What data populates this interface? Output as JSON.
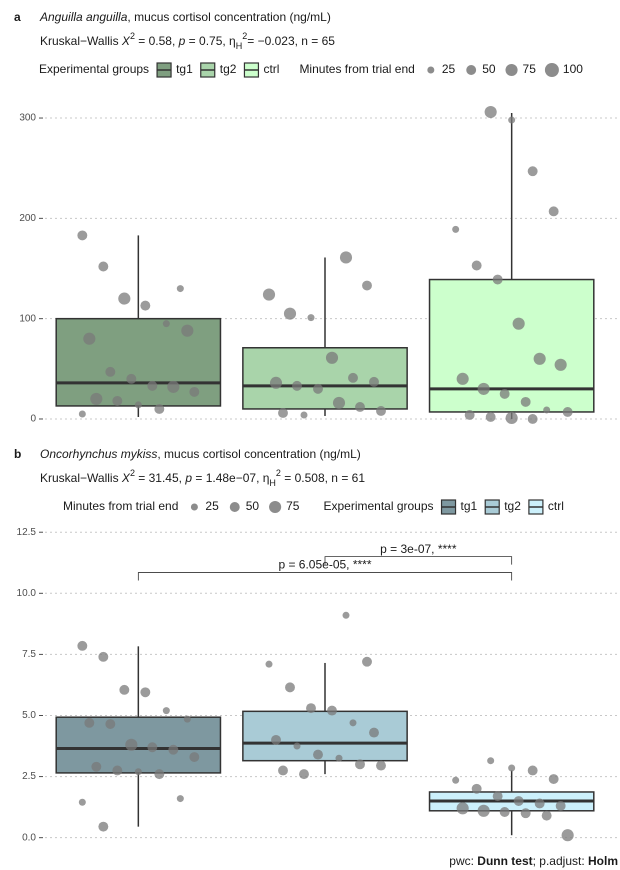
{
  "chart_data": [
    {
      "type": "box",
      "panel": "a",
      "title": [
        {
          "text": "Anguilla anguilla",
          "style": "italic"
        },
        {
          "text": ", mucus cortisol concentration (ng/mL)",
          "style": "normal"
        }
      ],
      "subtitle": [
        {
          "text": "Kruskal−Wallis ",
          "style": "normal"
        },
        {
          "text": "X",
          "style": "italic"
        },
        {
          "text": "2",
          "style": "sup"
        },
        {
          "text": " = 0.58, ",
          "style": "normal"
        },
        {
          "text": "p",
          "style": "italic"
        },
        {
          "text": " = 0.75, η",
          "style": "normal"
        },
        {
          "text": "H",
          "style": "sub"
        },
        {
          "text": "2",
          "style": "sup"
        },
        {
          "text": "= −0.023, n = 65",
          "style": "normal"
        }
      ],
      "group_legend_title": "Experimental groups",
      "size_legend_title": "Minutes from trial end",
      "legend_order": [
        "group",
        "size"
      ],
      "size_ticks": [
        25,
        50,
        75,
        100
      ],
      "ylim": [
        -6,
        310
      ],
      "yticks": [
        0,
        100,
        200,
        300
      ],
      "grid": true,
      "series": [
        {
          "name": "tg1",
          "color": "#7f9f80",
          "whisker_low": 2,
          "q1": 13,
          "median": 36,
          "q3": 100,
          "whisker_high": 183,
          "points": [
            183,
            152,
            120,
            113,
            95,
            88,
            80,
            47,
            40,
            33,
            32,
            27,
            20,
            18,
            14,
            10,
            130,
            5
          ],
          "sizes": [
            50,
            50,
            75,
            50,
            25,
            75,
            75,
            50,
            50,
            50,
            75,
            50,
            75,
            50,
            25,
            50,
            25,
            25
          ]
        },
        {
          "name": "tg2",
          "color": "#a9d4aa",
          "whisker_low": 3,
          "q1": 10,
          "median": 33,
          "q3": 71,
          "whisker_high": 161,
          "points": [
            161,
            133,
            124,
            105,
            101,
            61,
            41,
            37,
            36,
            33,
            30,
            16,
            12,
            8,
            6,
            4
          ],
          "sizes": [
            75,
            50,
            75,
            75,
            25,
            75,
            50,
            50,
            75,
            50,
            50,
            75,
            50,
            50,
            50,
            25
          ]
        },
        {
          "name": "ctrl",
          "color": "#ccffcc",
          "whisker_low": 0,
          "q1": 7,
          "median": 30,
          "q3": 139,
          "whisker_high": 305,
          "points": [
            306,
            298,
            247,
            207,
            189,
            153,
            139,
            95,
            60,
            54,
            40,
            30,
            25,
            17,
            9,
            7,
            4,
            2,
            1,
            0
          ],
          "sizes": [
            75,
            25,
            50,
            50,
            25,
            50,
            50,
            75,
            75,
            75,
            75,
            75,
            50,
            50,
            25,
            50,
            50,
            50,
            75,
            50
          ]
        }
      ]
    },
    {
      "type": "box",
      "panel": "b",
      "title": [
        {
          "text": "Oncorhynchus mykiss",
          "style": "italic"
        },
        {
          "text": ", mucus cortisol concentration (ng/mL)",
          "style": "normal"
        }
      ],
      "subtitle": [
        {
          "text": "Kruskal−Wallis ",
          "style": "normal"
        },
        {
          "text": "X",
          "style": "italic"
        },
        {
          "text": "2",
          "style": "sup"
        },
        {
          "text": " = 31.45, ",
          "style": "normal"
        },
        {
          "text": "p",
          "style": "italic"
        },
        {
          "text": " = 1.48e−07, η",
          "style": "normal"
        },
        {
          "text": "H",
          "style": "sub"
        },
        {
          "text": "2",
          "style": "sup"
        },
        {
          "text": " = 0.508, n = 61",
          "style": "normal"
        }
      ],
      "group_legend_title": "Experimental groups",
      "size_legend_title": "Minutes from trial end",
      "legend_order": [
        "size",
        "group"
      ],
      "size_ticks": [
        25,
        50,
        75
      ],
      "ylim": [
        -0.3,
        13
      ],
      "grid": true,
      "yticks": [
        {
          "value": 0,
          "label": "0.0"
        },
        {
          "value": 2.5,
          "label": "2.5"
        },
        {
          "value": 5,
          "label": "5.0"
        },
        {
          "value": 7.5,
          "label": "7.5"
        },
        {
          "value": 10,
          "label": "10.0"
        },
        {
          "value": 12.5,
          "label": "12.5"
        }
      ],
      "series": [
        {
          "name": "tg1",
          "color": "#7e98a0",
          "whisker_low": 0.45,
          "q1": 2.65,
          "median": 3.65,
          "q3": 4.93,
          "whisker_high": 7.83,
          "points": [
            7.85,
            7.4,
            6.05,
            5.95,
            5.2,
            4.85,
            4.7,
            4.65,
            3.8,
            3.7,
            3.6,
            3.3,
            2.9,
            2.75,
            2.7,
            2.6,
            1.6,
            1.45,
            0.45
          ],
          "sizes": [
            50,
            50,
            50,
            50,
            25,
            25,
            50,
            50,
            75,
            50,
            50,
            50,
            50,
            50,
            25,
            50,
            25,
            25,
            50
          ]
        },
        {
          "name": "tg2",
          "color": "#a9cbd6",
          "whisker_low": 2.6,
          "q1": 3.15,
          "median": 3.87,
          "q3": 5.17,
          "whisker_high": 7.15,
          "points": [
            9.1,
            7.2,
            7.1,
            6.15,
            5.3,
            5.2,
            4.7,
            4.3,
            4.0,
            3.75,
            3.4,
            3.25,
            3.0,
            2.95,
            2.75,
            2.6
          ],
          "sizes": [
            25,
            50,
            25,
            50,
            50,
            50,
            25,
            50,
            50,
            25,
            50,
            25,
            50,
            50,
            50,
            50
          ]
        },
        {
          "name": "ctrl",
          "color": "#ccf0fb",
          "whisker_low": 0.1,
          "q1": 1.1,
          "median": 1.5,
          "q3": 1.87,
          "whisker_high": 2.75,
          "points": [
            3.15,
            2.85,
            2.75,
            2.4,
            2.35,
            2.0,
            1.7,
            1.5,
            1.4,
            1.3,
            1.2,
            1.1,
            1.05,
            1.0,
            0.9,
            0.1
          ],
          "sizes": [
            25,
            25,
            50,
            50,
            25,
            50,
            50,
            50,
            50,
            50,
            75,
            75,
            50,
            50,
            50,
            75
          ]
        }
      ],
      "comparisons": [
        {
          "groups": [
            "tg2",
            "ctrl"
          ],
          "y": 11.5,
          "label": "p = 3e-07, ****"
        },
        {
          "groups": [
            "tg1",
            "ctrl"
          ],
          "y": 10.85,
          "label": "p = 6.05e-05, ****"
        }
      ],
      "caption": [
        {
          "text": "pwc: ",
          "style": "normal"
        },
        {
          "text": "Dunn test",
          "style": "bold"
        },
        {
          "text": "; p.adjust: ",
          "style": "normal"
        },
        {
          "text": "Holm",
          "style": "bold"
        }
      ]
    }
  ]
}
